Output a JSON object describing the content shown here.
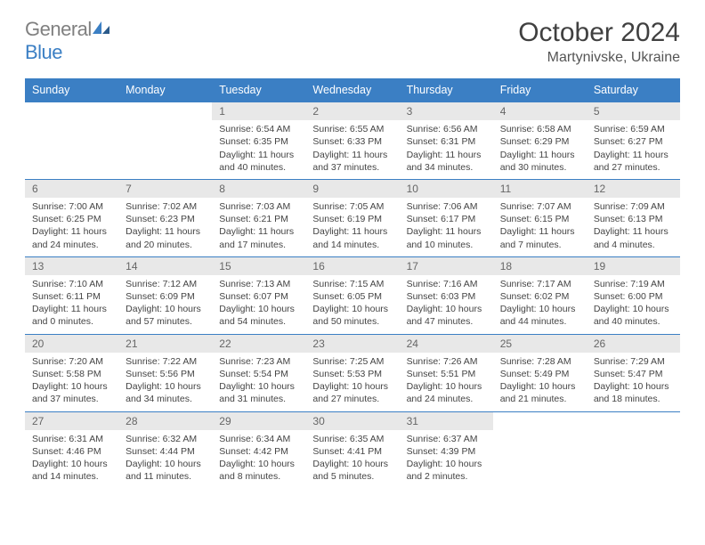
{
  "logo": {
    "part1": "General",
    "part2": "Blue"
  },
  "title": "October 2024",
  "location": "Martynivske, Ukraine",
  "colors": {
    "header_bg": "#3b7fc4",
    "header_text": "#ffffff",
    "daynum_bg": "#e8e8e8",
    "border": "#3b7fc4",
    "text": "#444444"
  },
  "day_names": [
    "Sunday",
    "Monday",
    "Tuesday",
    "Wednesday",
    "Thursday",
    "Friday",
    "Saturday"
  ],
  "weeks": [
    [
      null,
      null,
      {
        "n": "1",
        "sr": "Sunrise: 6:54 AM",
        "ss": "Sunset: 6:35 PM",
        "dl1": "Daylight: 11 hours",
        "dl2": "and 40 minutes."
      },
      {
        "n": "2",
        "sr": "Sunrise: 6:55 AM",
        "ss": "Sunset: 6:33 PM",
        "dl1": "Daylight: 11 hours",
        "dl2": "and 37 minutes."
      },
      {
        "n": "3",
        "sr": "Sunrise: 6:56 AM",
        "ss": "Sunset: 6:31 PM",
        "dl1": "Daylight: 11 hours",
        "dl2": "and 34 minutes."
      },
      {
        "n": "4",
        "sr": "Sunrise: 6:58 AM",
        "ss": "Sunset: 6:29 PM",
        "dl1": "Daylight: 11 hours",
        "dl2": "and 30 minutes."
      },
      {
        "n": "5",
        "sr": "Sunrise: 6:59 AM",
        "ss": "Sunset: 6:27 PM",
        "dl1": "Daylight: 11 hours",
        "dl2": "and 27 minutes."
      }
    ],
    [
      {
        "n": "6",
        "sr": "Sunrise: 7:00 AM",
        "ss": "Sunset: 6:25 PM",
        "dl1": "Daylight: 11 hours",
        "dl2": "and 24 minutes."
      },
      {
        "n": "7",
        "sr": "Sunrise: 7:02 AM",
        "ss": "Sunset: 6:23 PM",
        "dl1": "Daylight: 11 hours",
        "dl2": "and 20 minutes."
      },
      {
        "n": "8",
        "sr": "Sunrise: 7:03 AM",
        "ss": "Sunset: 6:21 PM",
        "dl1": "Daylight: 11 hours",
        "dl2": "and 17 minutes."
      },
      {
        "n": "9",
        "sr": "Sunrise: 7:05 AM",
        "ss": "Sunset: 6:19 PM",
        "dl1": "Daylight: 11 hours",
        "dl2": "and 14 minutes."
      },
      {
        "n": "10",
        "sr": "Sunrise: 7:06 AM",
        "ss": "Sunset: 6:17 PM",
        "dl1": "Daylight: 11 hours",
        "dl2": "and 10 minutes."
      },
      {
        "n": "11",
        "sr": "Sunrise: 7:07 AM",
        "ss": "Sunset: 6:15 PM",
        "dl1": "Daylight: 11 hours",
        "dl2": "and 7 minutes."
      },
      {
        "n": "12",
        "sr": "Sunrise: 7:09 AM",
        "ss": "Sunset: 6:13 PM",
        "dl1": "Daylight: 11 hours",
        "dl2": "and 4 minutes."
      }
    ],
    [
      {
        "n": "13",
        "sr": "Sunrise: 7:10 AM",
        "ss": "Sunset: 6:11 PM",
        "dl1": "Daylight: 11 hours",
        "dl2": "and 0 minutes."
      },
      {
        "n": "14",
        "sr": "Sunrise: 7:12 AM",
        "ss": "Sunset: 6:09 PM",
        "dl1": "Daylight: 10 hours",
        "dl2": "and 57 minutes."
      },
      {
        "n": "15",
        "sr": "Sunrise: 7:13 AM",
        "ss": "Sunset: 6:07 PM",
        "dl1": "Daylight: 10 hours",
        "dl2": "and 54 minutes."
      },
      {
        "n": "16",
        "sr": "Sunrise: 7:15 AM",
        "ss": "Sunset: 6:05 PM",
        "dl1": "Daylight: 10 hours",
        "dl2": "and 50 minutes."
      },
      {
        "n": "17",
        "sr": "Sunrise: 7:16 AM",
        "ss": "Sunset: 6:03 PM",
        "dl1": "Daylight: 10 hours",
        "dl2": "and 47 minutes."
      },
      {
        "n": "18",
        "sr": "Sunrise: 7:17 AM",
        "ss": "Sunset: 6:02 PM",
        "dl1": "Daylight: 10 hours",
        "dl2": "and 44 minutes."
      },
      {
        "n": "19",
        "sr": "Sunrise: 7:19 AM",
        "ss": "Sunset: 6:00 PM",
        "dl1": "Daylight: 10 hours",
        "dl2": "and 40 minutes."
      }
    ],
    [
      {
        "n": "20",
        "sr": "Sunrise: 7:20 AM",
        "ss": "Sunset: 5:58 PM",
        "dl1": "Daylight: 10 hours",
        "dl2": "and 37 minutes."
      },
      {
        "n": "21",
        "sr": "Sunrise: 7:22 AM",
        "ss": "Sunset: 5:56 PM",
        "dl1": "Daylight: 10 hours",
        "dl2": "and 34 minutes."
      },
      {
        "n": "22",
        "sr": "Sunrise: 7:23 AM",
        "ss": "Sunset: 5:54 PM",
        "dl1": "Daylight: 10 hours",
        "dl2": "and 31 minutes."
      },
      {
        "n": "23",
        "sr": "Sunrise: 7:25 AM",
        "ss": "Sunset: 5:53 PM",
        "dl1": "Daylight: 10 hours",
        "dl2": "and 27 minutes."
      },
      {
        "n": "24",
        "sr": "Sunrise: 7:26 AM",
        "ss": "Sunset: 5:51 PM",
        "dl1": "Daylight: 10 hours",
        "dl2": "and 24 minutes."
      },
      {
        "n": "25",
        "sr": "Sunrise: 7:28 AM",
        "ss": "Sunset: 5:49 PM",
        "dl1": "Daylight: 10 hours",
        "dl2": "and 21 minutes."
      },
      {
        "n": "26",
        "sr": "Sunrise: 7:29 AM",
        "ss": "Sunset: 5:47 PM",
        "dl1": "Daylight: 10 hours",
        "dl2": "and 18 minutes."
      }
    ],
    [
      {
        "n": "27",
        "sr": "Sunrise: 6:31 AM",
        "ss": "Sunset: 4:46 PM",
        "dl1": "Daylight: 10 hours",
        "dl2": "and 14 minutes."
      },
      {
        "n": "28",
        "sr": "Sunrise: 6:32 AM",
        "ss": "Sunset: 4:44 PM",
        "dl1": "Daylight: 10 hours",
        "dl2": "and 11 minutes."
      },
      {
        "n": "29",
        "sr": "Sunrise: 6:34 AM",
        "ss": "Sunset: 4:42 PM",
        "dl1": "Daylight: 10 hours",
        "dl2": "and 8 minutes."
      },
      {
        "n": "30",
        "sr": "Sunrise: 6:35 AM",
        "ss": "Sunset: 4:41 PM",
        "dl1": "Daylight: 10 hours",
        "dl2": "and 5 minutes."
      },
      {
        "n": "31",
        "sr": "Sunrise: 6:37 AM",
        "ss": "Sunset: 4:39 PM",
        "dl1": "Daylight: 10 hours",
        "dl2": "and 2 minutes."
      },
      null,
      null
    ]
  ]
}
